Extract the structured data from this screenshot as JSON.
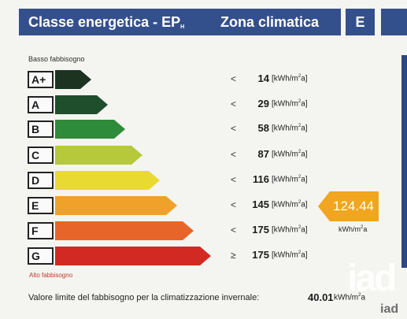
{
  "header": {
    "title": "Classe energetica - EP",
    "title_sub": "H",
    "zone_label": "Zona climatica",
    "zone_value": "E"
  },
  "scale": {
    "low_label": "Basso fabbisogno",
    "high_label": "Alto fabbisogno",
    "classes": [
      {
        "letter": "A+",
        "sign": "<",
        "value": "14",
        "unit": "kWh/m",
        "unit_sup": "2",
        "unit_tail": "a",
        "color": "#1c3322"
      },
      {
        "letter": "A",
        "sign": "<",
        "value": "29",
        "unit": "kWh/m",
        "unit_sup": "2",
        "unit_tail": "a",
        "color": "#1f4e2c"
      },
      {
        "letter": "B",
        "sign": "<",
        "value": "58",
        "unit": "kWh/m",
        "unit_sup": "2",
        "unit_tail": "a",
        "color": "#2e8b3a"
      },
      {
        "letter": "C",
        "sign": "<",
        "value": "87",
        "unit": "kWh/m",
        "unit_sup": "2",
        "unit_tail": "a",
        "color": "#b5c93a"
      },
      {
        "letter": "D",
        "sign": "<",
        "value": "116",
        "unit": "kWh/m",
        "unit_sup": "2",
        "unit_tail": "a",
        "color": "#e9da32"
      },
      {
        "letter": "E",
        "sign": "<",
        "value": "145",
        "unit": "kWh/m",
        "unit_sup": "2",
        "unit_tail": "a",
        "color": "#f0a12a"
      },
      {
        "letter": "F",
        "sign": "<",
        "value": "175",
        "unit": "kWh/m",
        "unit_sup": "2",
        "unit_tail": "a",
        "color": "#e8652a"
      },
      {
        "letter": "G",
        "sign": "≥",
        "value": "175",
        "unit": "kWh/m",
        "unit_sup": "2",
        "unit_tail": "a",
        "color": "#d22a22"
      }
    ]
  },
  "indicator": {
    "value": "124.44",
    "unit": "kWh/m",
    "unit_sup": "2",
    "unit_tail": "a",
    "color": "#f2a51f"
  },
  "footer": {
    "label": "Valore limite del fabbisogno per la climatizzazione invernale:",
    "value": "40.01",
    "unit": "kWh/m",
    "unit_sup": "2",
    "unit_tail": "a"
  },
  "watermark": {
    "logo": "iad",
    "logo_mark": "iad"
  }
}
